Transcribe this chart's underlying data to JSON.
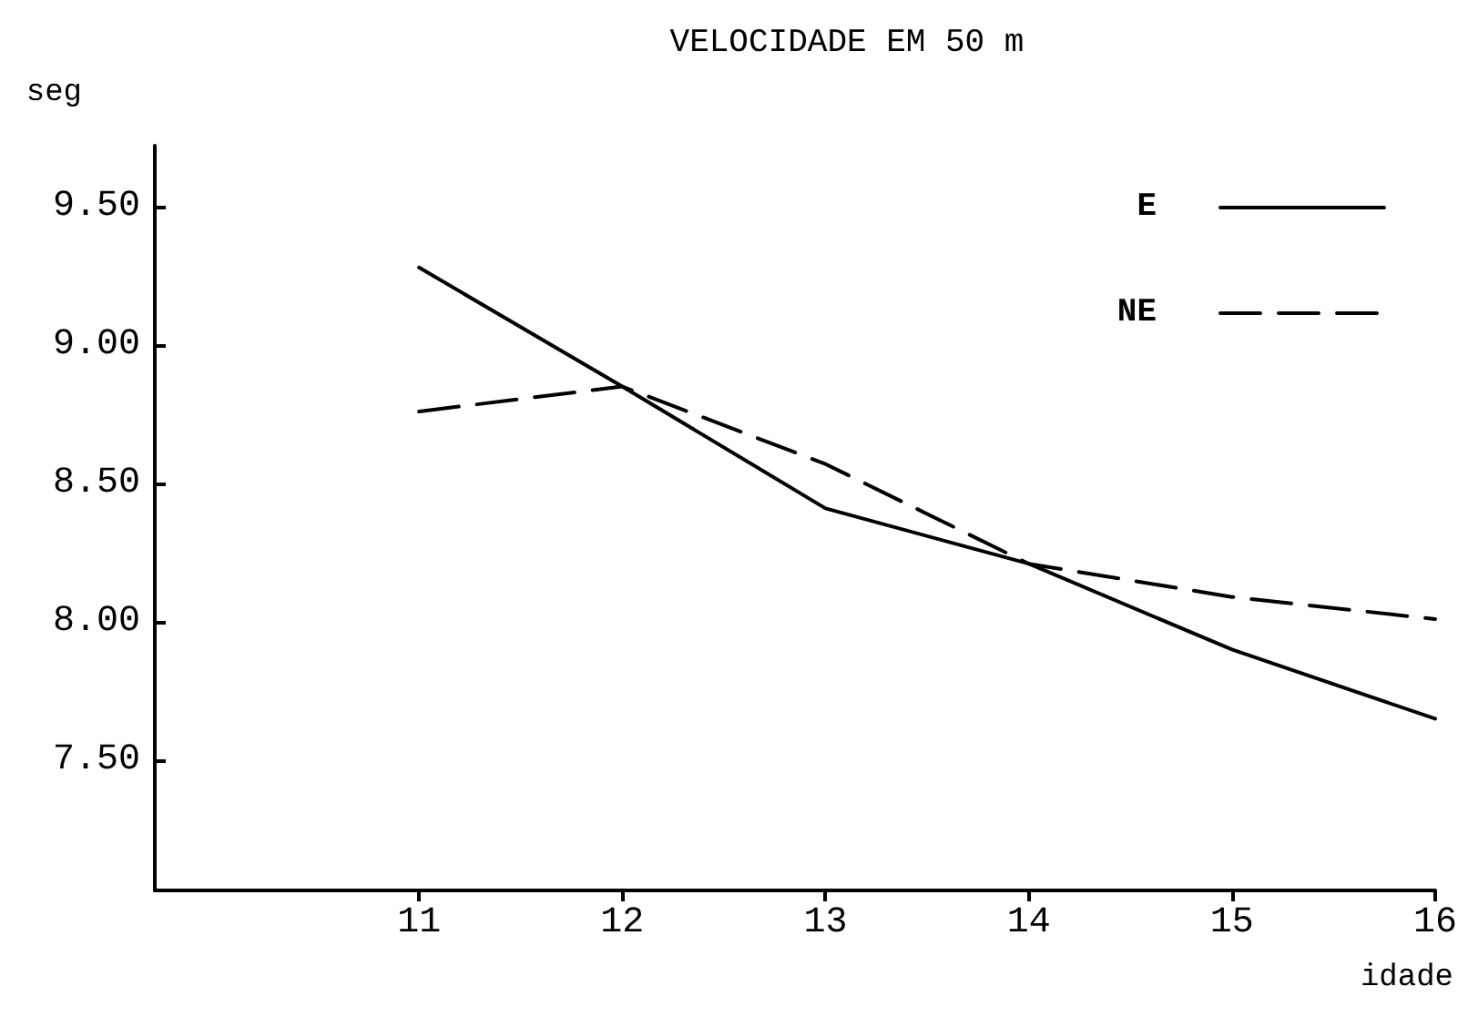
{
  "chart_data": {
    "type": "line",
    "title": "VELOCIDADE EM 50 m",
    "ylabel": "seg",
    "xlabel": "idade",
    "x": [
      11,
      12,
      13,
      14,
      15,
      16
    ],
    "series": [
      {
        "name": "E",
        "color": "#000000",
        "line_style": "solid",
        "values": [
          9.28,
          8.85,
          8.41,
          8.21,
          7.9,
          7.65
        ]
      },
      {
        "name": "NE",
        "color": "#000000",
        "line_style": "dashed",
        "values": [
          8.76,
          8.85,
          8.57,
          8.21,
          8.09,
          8.01
        ]
      }
    ],
    "xlim": [
      9.7,
      16
    ],
    "xticks": [
      11,
      12,
      13,
      14,
      15,
      16
    ],
    "ylim": [
      7.03,
      9.72
    ],
    "yticks": [
      {
        "value": 7.5,
        "label": "7.50"
      },
      {
        "value": 8,
        "label": "8.00"
      },
      {
        "value": 8.5,
        "label": "8.50"
      },
      {
        "value": 9,
        "label": "9.00"
      },
      {
        "value": 9.5,
        "label": "9.50"
      }
    ],
    "grid": false,
    "legend": "top right",
    "marker": "none"
  }
}
